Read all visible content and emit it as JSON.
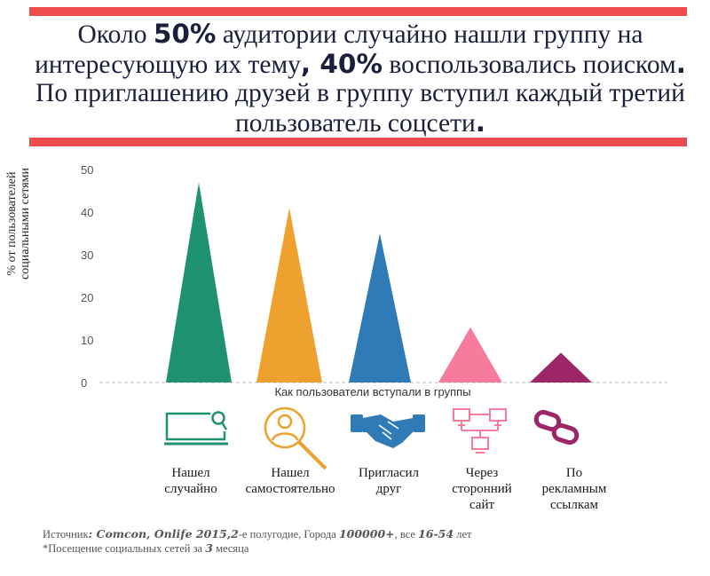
{
  "headline": {
    "p1": "Около ",
    "b1": "50%",
    "p2": " аудитории случайно нашли группу на интересующую их тему",
    "b2": ", 40%",
    "p3": " воспользовались поиском",
    "b3": ".",
    "p4": " По приглашению друзей в группу вступил каждый третий пользователь соцсети",
    "b4": "."
  },
  "colors": {
    "accent_bar": "#ef4d4d",
    "green": "#1f9272",
    "orange": "#efa12f",
    "blue": "#2f7bb8",
    "pink": "#f77b9c",
    "purple": "#9d2668"
  },
  "chart_data": {
    "type": "bar",
    "shape": "triangle",
    "categories": [
      "Нашел случайно",
      "Нашел самостоятельно",
      "Пригласил друг",
      "Через сторонний сайт",
      "По рекламным ссылкам"
    ],
    "values": [
      47,
      41,
      35,
      13,
      7
    ],
    "ylabel": "% от пользователей социальными сетями",
    "xlabel": "Как пользователи вступали в группы",
    "ylim": [
      0,
      50
    ],
    "yticks": [
      "0",
      "10",
      "20",
      "30",
      "40",
      "50"
    ],
    "grid": false,
    "legend": "none"
  },
  "y_label": {
    "line1": "% от пользователей",
    "line2": "социальными сетями"
  },
  "categories": [
    {
      "line1": "Нашел",
      "line2": "случайно",
      "line3": "",
      "icon": "monitor-search-icon"
    },
    {
      "line1": "Нашел",
      "line2": "самостоятельно",
      "line3": "",
      "icon": "magnifier-user-icon"
    },
    {
      "line1": "Пригласил",
      "line2": "друг",
      "line3": "",
      "icon": "handshake-icon"
    },
    {
      "line1": "Через",
      "line2": "сторонний",
      "line3": "сайт",
      "icon": "network-icon"
    },
    {
      "line1": "По",
      "line2": "рекламным",
      "line3": "ссылкам",
      "icon": "chain-link-icon"
    }
  ],
  "footnote": {
    "source_label": "Источник",
    "source_hand": ": Comcon, Onlife 2015,2",
    "source_rest": "-е полугодие, Города ",
    "cities_hand": "100000+",
    "age_rest": ", все ",
    "age_hand": "16-54",
    "age_unit": " лет",
    "note_star": "*",
    "note_text": "Посещение социальных сетей за ",
    "note_hand": "3",
    "note_unit": " месяца"
  }
}
